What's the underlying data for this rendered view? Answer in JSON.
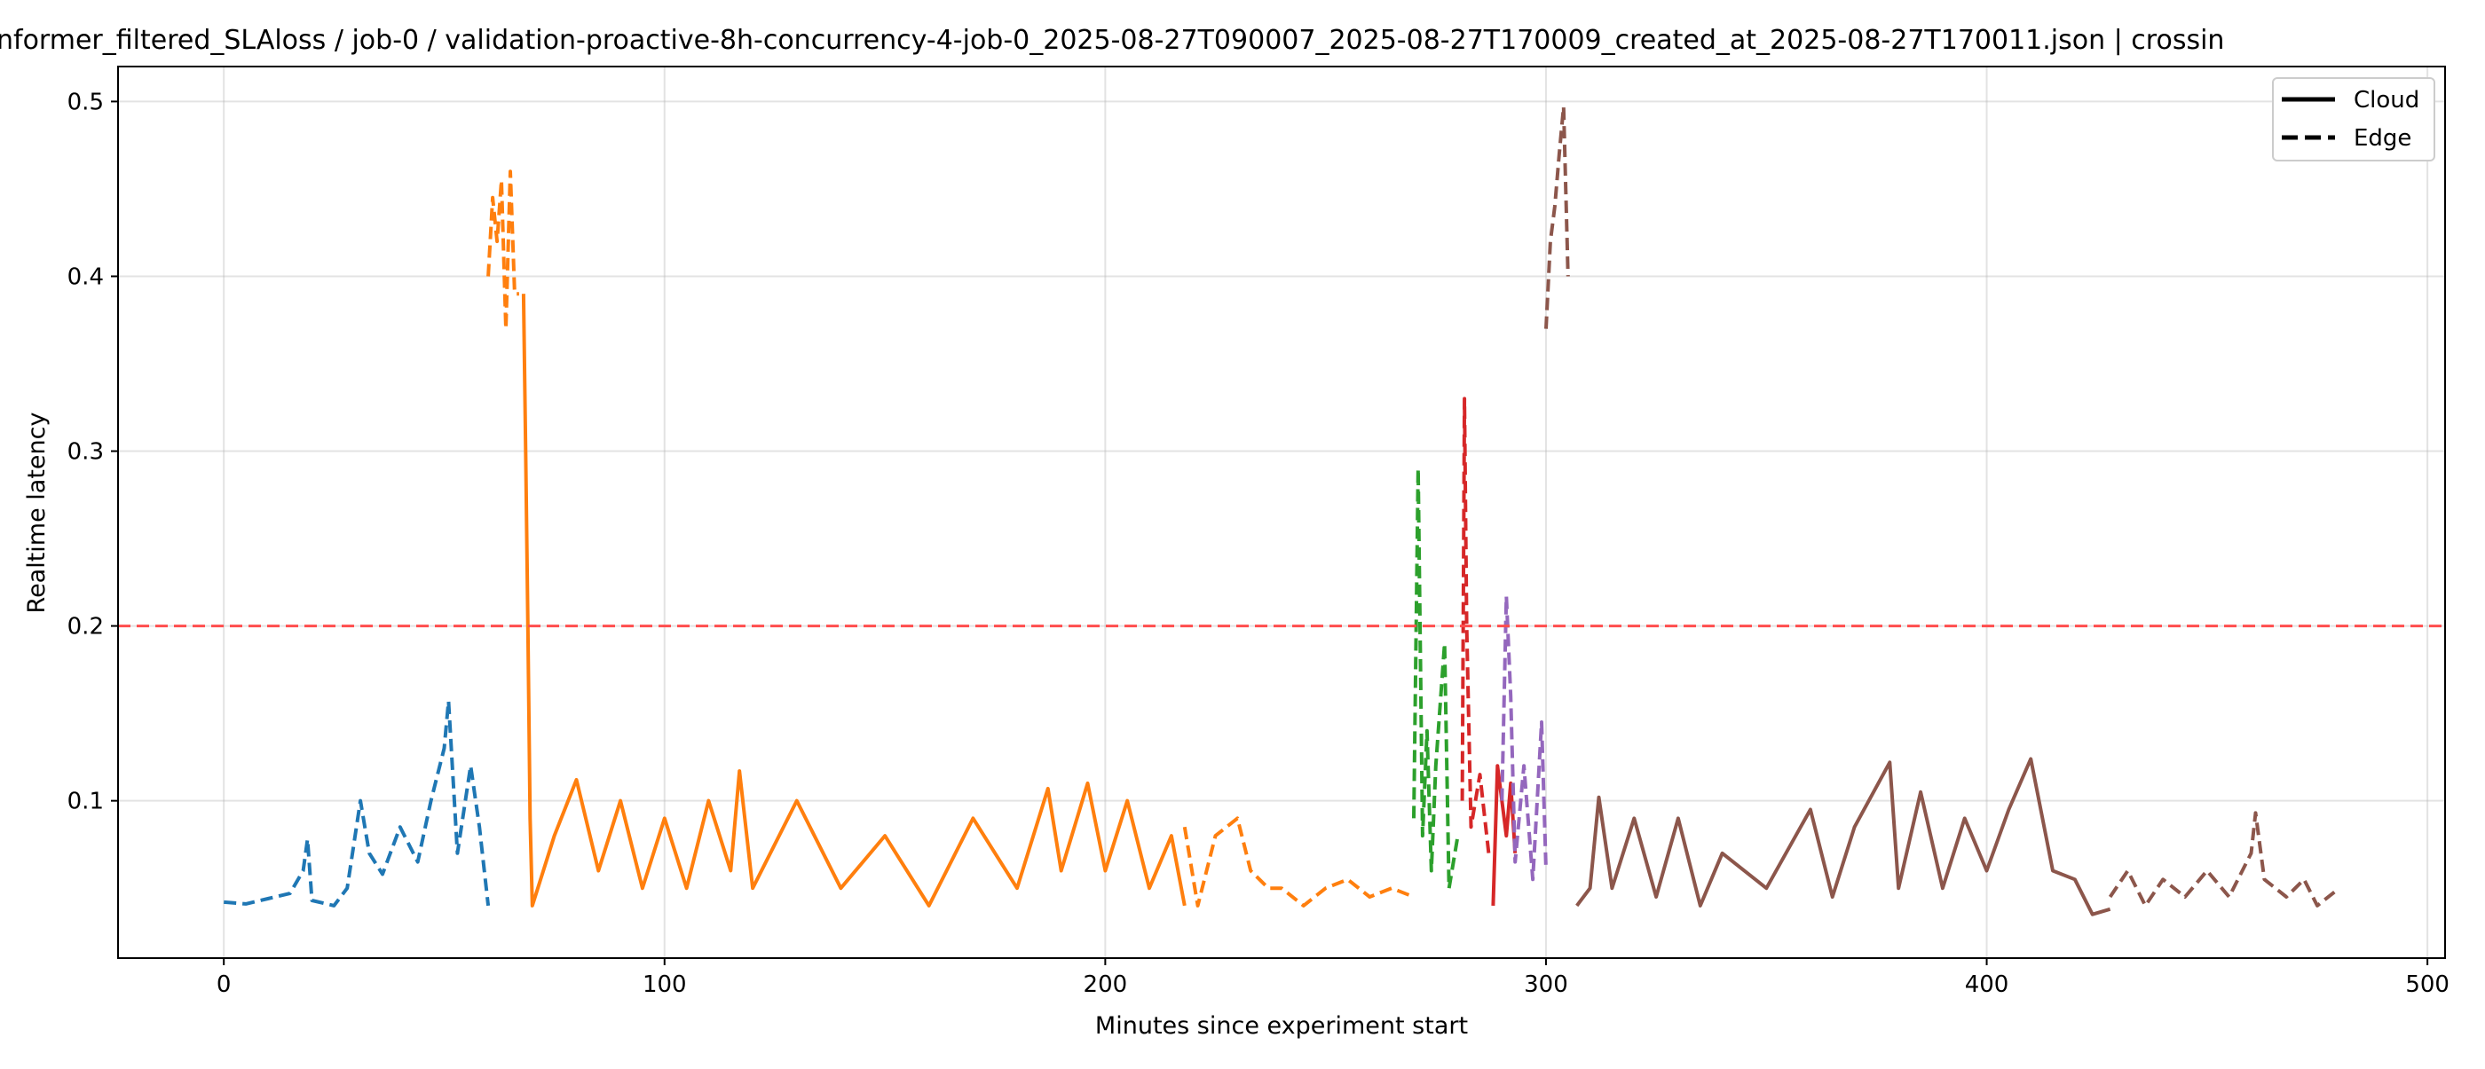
{
  "chart_data": {
    "type": "line",
    "title": "nformer_filtered_SLAloss / job-0 / validation-proactive-8h-concurrency-4-job-0_2025-08-27T090007_2025-08-27T170009_created_at_2025-08-27T170011.json  |  crossin",
    "xlabel": "Minutes since experiment start",
    "ylabel": "Realtime latency",
    "xlim": [
      -24,
      504
    ],
    "ylim": [
      0.01,
      0.52
    ],
    "xticks": [
      0,
      100,
      200,
      300,
      400,
      500
    ],
    "yticks": [
      0.1,
      0.2,
      0.3,
      0.4,
      0.5
    ],
    "grid": true,
    "legend": {
      "position": "top-right",
      "entries": [
        {
          "label": "Cloud",
          "style": "solid"
        },
        {
          "label": "Edge",
          "style": "dashed"
        }
      ]
    },
    "threshold": {
      "y": 0.2,
      "color": "#ff4d4d",
      "style": "dashed"
    },
    "series": [
      {
        "color": "#1f77b4",
        "style": "dashed",
        "x_range": [
          0,
          60
        ],
        "points": [
          [
            0,
            0.042
          ],
          [
            5,
            0.041
          ],
          [
            10,
            0.044
          ],
          [
            15,
            0.047
          ],
          [
            18,
            0.06
          ],
          [
            19,
            0.078
          ],
          [
            20,
            0.043
          ],
          [
            25,
            0.04
          ],
          [
            28,
            0.05
          ],
          [
            31,
            0.1
          ],
          [
            33,
            0.07
          ],
          [
            36,
            0.058
          ],
          [
            40,
            0.085
          ],
          [
            44,
            0.065
          ],
          [
            47,
            0.1
          ],
          [
            50,
            0.13
          ],
          [
            51,
            0.157
          ],
          [
            53,
            0.07
          ],
          [
            56,
            0.12
          ],
          [
            58,
            0.085
          ],
          [
            60,
            0.04
          ]
        ]
      },
      {
        "color": "#ff7f0e",
        "style": "dashed",
        "x_range": [
          60,
          68
        ],
        "points": [
          [
            60,
            0.4
          ],
          [
            61,
            0.445
          ],
          [
            62,
            0.42
          ],
          [
            63,
            0.455
          ],
          [
            64,
            0.37
          ],
          [
            65,
            0.46
          ],
          [
            66,
            0.39
          ],
          [
            67,
            0.39
          ]
        ]
      },
      {
        "color": "#ff7f0e",
        "style": "solid",
        "x_range": [
          68,
          218
        ],
        "points": [
          [
            68,
            0.39
          ],
          [
            68.5,
            0.3
          ],
          [
            69,
            0.2
          ],
          [
            69.5,
            0.09
          ],
          [
            70,
            0.04
          ],
          [
            75,
            0.08
          ],
          [
            80,
            0.112
          ],
          [
            85,
            0.06
          ],
          [
            90,
            0.1
          ],
          [
            95,
            0.05
          ],
          [
            100,
            0.09
          ],
          [
            105,
            0.05
          ],
          [
            110,
            0.1
          ],
          [
            115,
            0.06
          ],
          [
            117,
            0.117
          ],
          [
            120,
            0.05
          ],
          [
            130,
            0.1
          ],
          [
            140,
            0.05
          ],
          [
            150,
            0.08
          ],
          [
            160,
            0.04
          ],
          [
            170,
            0.09
          ],
          [
            180,
            0.05
          ],
          [
            187,
            0.107
          ],
          [
            190,
            0.06
          ],
          [
            196,
            0.11
          ],
          [
            200,
            0.06
          ],
          [
            205,
            0.1
          ],
          [
            210,
            0.05
          ],
          [
            215,
            0.08
          ],
          [
            218,
            0.04
          ]
        ]
      },
      {
        "color": "#ff7f0e",
        "style": "dashed",
        "x_range": [
          218,
          270
        ],
        "points": [
          [
            218,
            0.085
          ],
          [
            221,
            0.04
          ],
          [
            225,
            0.08
          ],
          [
            230,
            0.09
          ],
          [
            233,
            0.06
          ],
          [
            237,
            0.05
          ],
          [
            240,
            0.05
          ],
          [
            245,
            0.04
          ],
          [
            250,
            0.05
          ],
          [
            255,
            0.055
          ],
          [
            260,
            0.045
          ],
          [
            265,
            0.05
          ],
          [
            270,
            0.045
          ]
        ]
      },
      {
        "color": "#2ca02c",
        "style": "dashed",
        "x_range": [
          270,
          281
        ],
        "points": [
          [
            270,
            0.09
          ],
          [
            271,
            0.29
          ],
          [
            272,
            0.08
          ],
          [
            273,
            0.14
          ],
          [
            274,
            0.06
          ],
          [
            275,
            0.12
          ],
          [
            277,
            0.19
          ],
          [
            278,
            0.05
          ],
          [
            280,
            0.08
          ]
        ]
      },
      {
        "color": "#d62728",
        "style": "dashed",
        "x_range": [
          281,
          288
        ],
        "points": [
          [
            281,
            0.1
          ],
          [
            281.5,
            0.33
          ],
          [
            282,
            0.2
          ],
          [
            283,
            0.085
          ],
          [
            285,
            0.115
          ],
          [
            287,
            0.07
          ]
        ]
      },
      {
        "color": "#d62728",
        "style": "solid",
        "x_range": [
          288,
          293
        ],
        "points": [
          [
            288,
            0.04
          ],
          [
            289,
            0.12
          ],
          [
            291,
            0.08
          ],
          [
            292,
            0.11
          ],
          [
            293,
            0.07
          ]
        ]
      },
      {
        "color": "#9467bd",
        "style": "dashed",
        "x_range": [
          290,
          300
        ],
        "points": [
          [
            290,
            0.1
          ],
          [
            291,
            0.217
          ],
          [
            292,
            0.16
          ],
          [
            293,
            0.065
          ],
          [
            295,
            0.12
          ],
          [
            297,
            0.055
          ],
          [
            299,
            0.145
          ],
          [
            300,
            0.06
          ]
        ]
      },
      {
        "color": "#8c564b",
        "style": "dashed",
        "x_range": [
          300,
          306
        ],
        "points": [
          [
            300,
            0.37
          ],
          [
            301,
            0.42
          ],
          [
            302,
            0.44
          ],
          [
            303,
            0.47
          ],
          [
            304,
            0.497
          ],
          [
            305,
            0.4
          ]
        ]
      },
      {
        "color": "#8c564b",
        "style": "solid",
        "x_range": [
          307,
          428
        ],
        "points": [
          [
            307,
            0.04
          ],
          [
            310,
            0.05
          ],
          [
            312,
            0.102
          ],
          [
            315,
            0.05
          ],
          [
            320,
            0.09
          ],
          [
            325,
            0.045
          ],
          [
            330,
            0.09
          ],
          [
            335,
            0.04
          ],
          [
            340,
            0.07
          ],
          [
            350,
            0.05
          ],
          [
            360,
            0.095
          ],
          [
            365,
            0.045
          ],
          [
            370,
            0.085
          ],
          [
            378,
            0.122
          ],
          [
            380,
            0.05
          ],
          [
            385,
            0.105
          ],
          [
            390,
            0.05
          ],
          [
            395,
            0.09
          ],
          [
            400,
            0.06
          ],
          [
            405,
            0.095
          ],
          [
            410,
            0.124
          ],
          [
            415,
            0.06
          ],
          [
            420,
            0.055
          ],
          [
            424,
            0.035
          ],
          [
            428,
            0.038
          ]
        ]
      },
      {
        "color": "#8c564b",
        "style": "dashed",
        "x_range": [
          428,
          480
        ],
        "points": [
          [
            428,
            0.045
          ],
          [
            432,
            0.06
          ],
          [
            436,
            0.04
          ],
          [
            440,
            0.055
          ],
          [
            445,
            0.045
          ],
          [
            450,
            0.06
          ],
          [
            455,
            0.045
          ],
          [
            460,
            0.07
          ],
          [
            461,
            0.093
          ],
          [
            463,
            0.055
          ],
          [
            468,
            0.045
          ],
          [
            472,
            0.055
          ],
          [
            475,
            0.04
          ],
          [
            480,
            0.05
          ]
        ]
      }
    ]
  }
}
